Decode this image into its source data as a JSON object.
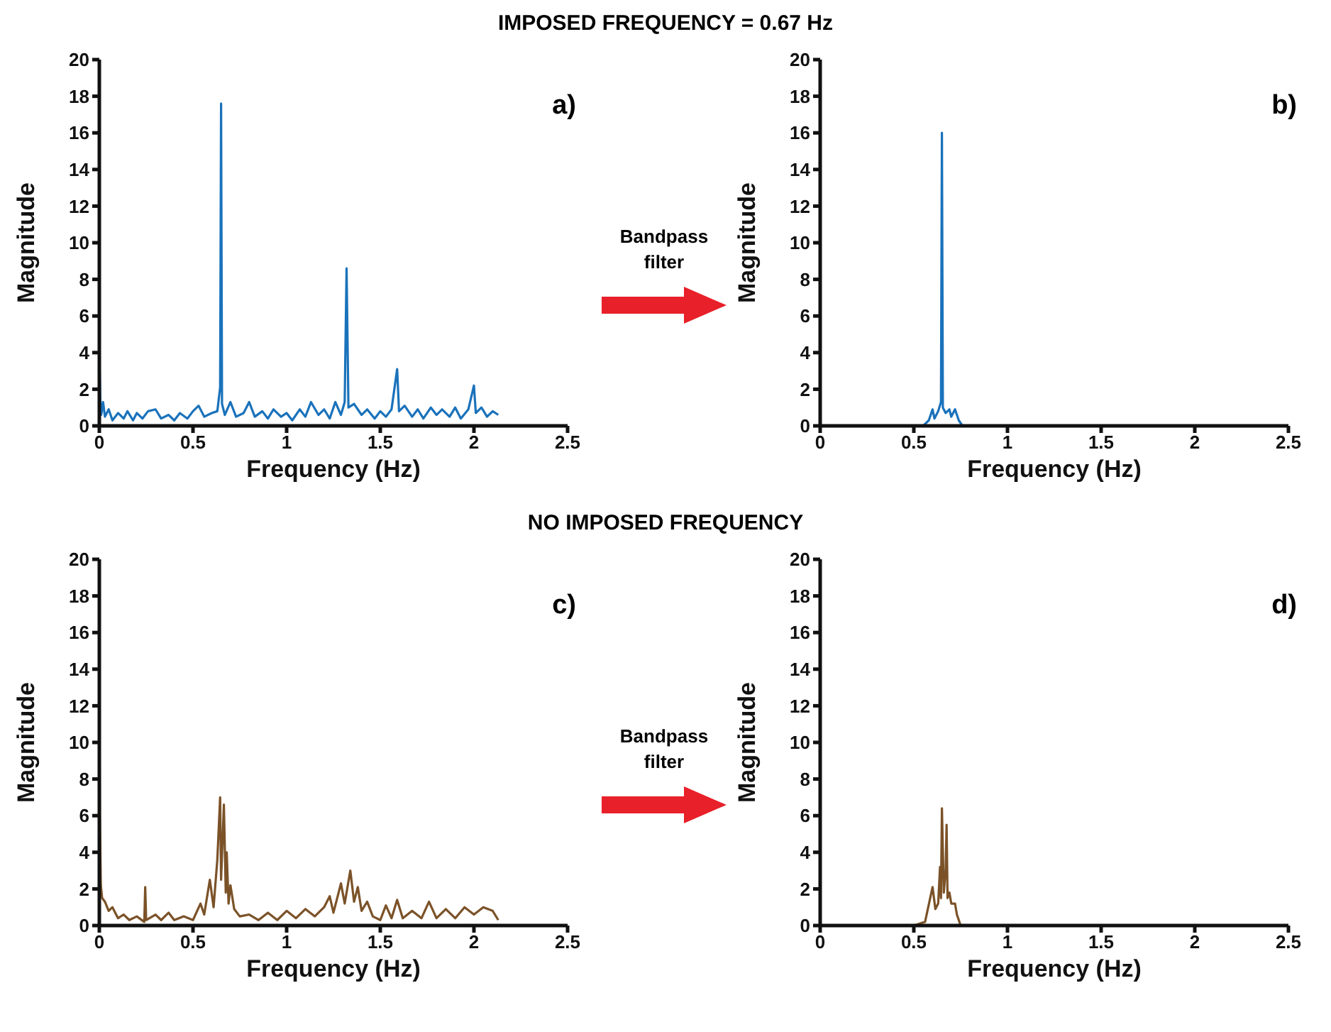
{
  "chart_data": [
    {
      "type": "line",
      "title": "IMPOSED FREQUENCY = 0.67 Hz",
      "xlabel": "Frequency (Hz)",
      "ylabel": "Magnitude",
      "annotations": [
        "a)"
      ],
      "xlim": [
        0,
        2.5
      ],
      "xticks": [
        0,
        0.5,
        1,
        1.5,
        2,
        2.5
      ],
      "ylim": [
        0,
        20
      ],
      "yticks": [
        0,
        2,
        4,
        6,
        8,
        10,
        12,
        14,
        16,
        18,
        20
      ],
      "grid": false,
      "marker": "none",
      "line_style": "solid",
      "series": [
        {
          "color": "#1a72bb",
          "x": [
            0,
            0.005,
            0.01,
            0.02,
            0.03,
            0.05,
            0.07,
            0.1,
            0.13,
            0.15,
            0.18,
            0.2,
            0.23,
            0.26,
            0.3,
            0.33,
            0.37,
            0.4,
            0.43,
            0.47,
            0.5,
            0.53,
            0.56,
            0.6,
            0.63,
            0.645,
            0.65,
            0.655,
            0.67,
            0.7,
            0.73,
            0.77,
            0.8,
            0.83,
            0.87,
            0.9,
            0.93,
            0.97,
            1.0,
            1.03,
            1.07,
            1.1,
            1.13,
            1.17,
            1.2,
            1.23,
            1.26,
            1.29,
            1.31,
            1.32,
            1.33,
            1.36,
            1.4,
            1.43,
            1.47,
            1.5,
            1.53,
            1.56,
            1.59,
            1.6,
            1.63,
            1.67,
            1.7,
            1.73,
            1.77,
            1.8,
            1.83,
            1.87,
            1.9,
            1.93,
            1.97,
            2.0,
            2.01,
            2.04,
            2.07,
            2.1,
            2.13
          ],
          "values": [
            3.9,
            1.5,
            0.6,
            1.3,
            0.5,
            0.9,
            0.3,
            0.7,
            0.4,
            0.8,
            0.3,
            0.7,
            0.4,
            0.8,
            0.9,
            0.4,
            0.6,
            0.3,
            0.7,
            0.4,
            0.8,
            1.1,
            0.5,
            0.7,
            0.8,
            2.1,
            17.6,
            1.2,
            0.6,
            1.3,
            0.5,
            0.7,
            1.3,
            0.5,
            0.8,
            0.4,
            0.9,
            0.5,
            0.7,
            0.3,
            0.9,
            0.5,
            1.3,
            0.6,
            0.9,
            0.4,
            1.3,
            0.6,
            1.3,
            8.6,
            1.0,
            1.2,
            0.6,
            0.9,
            0.4,
            0.8,
            0.5,
            0.9,
            3.1,
            0.8,
            1.1,
            0.5,
            0.9,
            0.4,
            1.0,
            0.6,
            0.9,
            0.5,
            1.0,
            0.4,
            0.9,
            2.2,
            0.7,
            1.0,
            0.5,
            0.8,
            0.6
          ]
        }
      ]
    },
    {
      "type": "line",
      "xlabel": "Frequency (Hz)",
      "ylabel": "Magnitude",
      "annotations": [
        "b)",
        "Bandpass filter"
      ],
      "xlim": [
        0,
        2.5
      ],
      "xticks": [
        0,
        0.5,
        1,
        1.5,
        2,
        2.5
      ],
      "ylim": [
        0,
        20
      ],
      "yticks": [
        0,
        2,
        4,
        6,
        8,
        10,
        12,
        14,
        16,
        18,
        20
      ],
      "grid": false,
      "marker": "none",
      "line_style": "solid",
      "series": [
        {
          "color": "#1a72bb",
          "x": [
            0.55,
            0.58,
            0.6,
            0.61,
            0.63,
            0.645,
            0.65,
            0.655,
            0.67,
            0.69,
            0.7,
            0.72,
            0.74,
            0.76
          ],
          "values": [
            0,
            0.3,
            0.9,
            0.4,
            0.8,
            1.3,
            16,
            1.0,
            0.7,
            0.9,
            0.5,
            0.9,
            0.3,
            0
          ]
        }
      ]
    },
    {
      "type": "line",
      "title": "NO IMPOSED FREQUENCY",
      "xlabel": "Frequency (Hz)",
      "ylabel": "Magnitude",
      "annotations": [
        "c)"
      ],
      "xlim": [
        0,
        2.5
      ],
      "xticks": [
        0,
        0.5,
        1,
        1.5,
        2,
        2.5
      ],
      "ylim": [
        0,
        20
      ],
      "yticks": [
        0,
        2,
        4,
        6,
        8,
        10,
        12,
        14,
        16,
        18,
        20
      ],
      "grid": false,
      "marker": "none",
      "line_style": "solid",
      "series": [
        {
          "color": "#7b5228",
          "x": [
            0,
            0.003,
            0.008,
            0.015,
            0.03,
            0.05,
            0.07,
            0.1,
            0.13,
            0.16,
            0.2,
            0.24,
            0.245,
            0.25,
            0.3,
            0.33,
            0.37,
            0.4,
            0.45,
            0.5,
            0.54,
            0.56,
            0.59,
            0.61,
            0.63,
            0.645,
            0.65,
            0.665,
            0.675,
            0.68,
            0.69,
            0.7,
            0.72,
            0.75,
            0.8,
            0.85,
            0.9,
            0.95,
            1.0,
            1.05,
            1.1,
            1.15,
            1.2,
            1.23,
            1.25,
            1.29,
            1.31,
            1.34,
            1.36,
            1.38,
            1.4,
            1.43,
            1.46,
            1.5,
            1.53,
            1.56,
            1.59,
            1.62,
            1.67,
            1.72,
            1.76,
            1.8,
            1.85,
            1.9,
            1.95,
            2.0,
            2.05,
            2.1,
            2.13
          ],
          "values": [
            12,
            6,
            2.2,
            1.5,
            1.3,
            0.8,
            1.0,
            0.4,
            0.6,
            0.3,
            0.5,
            0.2,
            2.1,
            0.3,
            0.6,
            0.3,
            0.7,
            0.3,
            0.5,
            0.3,
            1.2,
            0.6,
            2.5,
            1.0,
            3.6,
            7.0,
            2.5,
            6.6,
            1.8,
            4.0,
            1.2,
            2.2,
            0.9,
            0.5,
            0.6,
            0.3,
            0.7,
            0.3,
            0.8,
            0.4,
            0.9,
            0.5,
            1.0,
            1.6,
            0.7,
            2.3,
            1.2,
            3.0,
            1.3,
            2.1,
            0.8,
            1.3,
            0.5,
            0.3,
            1.1,
            0.4,
            1.4,
            0.4,
            0.8,
            0.4,
            1.3,
            0.4,
            0.9,
            0.4,
            1.0,
            0.6,
            1.0,
            0.8,
            0.3
          ]
        }
      ]
    },
    {
      "type": "line",
      "xlabel": "Frequency (Hz)",
      "ylabel": "Magnitude",
      "annotations": [
        "d)",
        "Bandpass filter"
      ],
      "xlim": [
        0,
        2.5
      ],
      "xticks": [
        0,
        0.5,
        1,
        1.5,
        2,
        2.5
      ],
      "ylim": [
        0,
        20
      ],
      "yticks": [
        0,
        2,
        4,
        6,
        8,
        10,
        12,
        14,
        16,
        18,
        20
      ],
      "grid": false,
      "marker": "none",
      "line_style": "solid",
      "series": [
        {
          "color": "#7b5228",
          "x": [
            0.5,
            0.56,
            0.6,
            0.615,
            0.63,
            0.64,
            0.645,
            0.65,
            0.66,
            0.67,
            0.675,
            0.68,
            0.69,
            0.7,
            0.72,
            0.73,
            0.75
          ],
          "values": [
            0,
            0.2,
            2.1,
            0.9,
            1.2,
            3.2,
            1.5,
            6.4,
            1.8,
            3.0,
            5.5,
            1.5,
            1.8,
            1.2,
            1.2,
            0.6,
            0
          ]
        }
      ]
    }
  ]
}
